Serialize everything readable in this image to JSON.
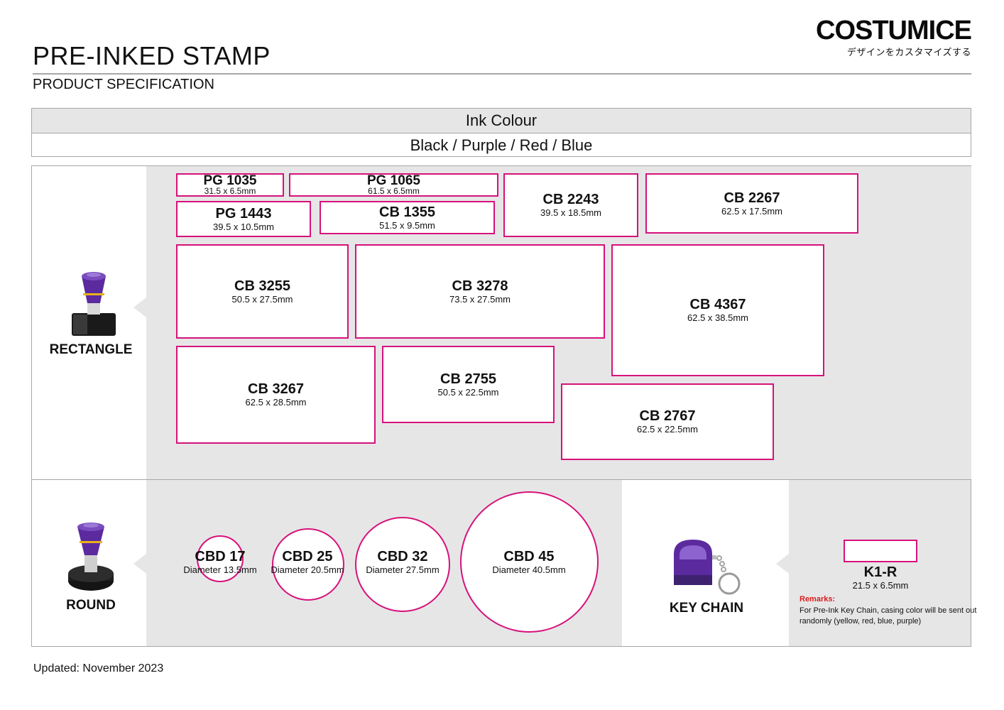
{
  "header": {
    "title": "PRE-INKED STAMP",
    "subtitle": "PRODUCT SPECIFICATION",
    "brand_name": "COSTUMICE",
    "brand_tagline": "デザインをカスタマイズする"
  },
  "ink": {
    "label": "Ink Colour",
    "value": "Black / Purple / Red / Blue"
  },
  "categories": {
    "rectangle": "RECTANGLE",
    "round": "ROUND",
    "keychain": "KEY CHAIN"
  },
  "rectangle_stamps": [
    {
      "code": "PG 1035",
      "size": "31.5 x 6.5mm"
    },
    {
      "code": "PG 1065",
      "size": "61.5 x 6.5mm"
    },
    {
      "code": "PG 1443",
      "size": "39.5 x 10.5mm"
    },
    {
      "code": "CB 1355",
      "size": "51.5 x 9.5mm"
    },
    {
      "code": "CB 2243",
      "size": "39.5 x 18.5mm"
    },
    {
      "code": "CB 2267",
      "size": "62.5 x 17.5mm"
    },
    {
      "code": "CB 3255",
      "size": "50.5 x 27.5mm"
    },
    {
      "code": "CB 3278",
      "size": "73.5 x 27.5mm"
    },
    {
      "code": "CB 4367",
      "size": "62.5 x 38.5mm"
    },
    {
      "code": "CB 3267",
      "size": "62.5 x 28.5mm"
    },
    {
      "code": "CB 2755",
      "size": "50.5 x 22.5mm"
    },
    {
      "code": "CB 2767",
      "size": "62.5 x 22.5mm"
    }
  ],
  "round_stamps": [
    {
      "code": "CBD 17",
      "size": "Diameter 13.5mm"
    },
    {
      "code": "CBD 25",
      "size": "Diameter 20.5mm"
    },
    {
      "code": "CBD 32",
      "size": "Diameter 27.5mm"
    },
    {
      "code": "CBD 45",
      "size": "Diameter 40.5mm"
    }
  ],
  "keychain_stamp": {
    "code": "K1-R",
    "size": "21.5 x 6.5mm"
  },
  "remarks": {
    "heading": "Remarks:",
    "text": "For Pre-Ink Key Chain, casing color will be sent out randomly (yellow, red, blue, purple)"
  },
  "colors": {
    "accent": "#d6127a",
    "panel_gray": "#e7e6e7",
    "stamp_purple": "#5b2a9e",
    "remarks_red": "#d61f1f"
  },
  "footer": {
    "updated": "Updated: November 2023"
  }
}
